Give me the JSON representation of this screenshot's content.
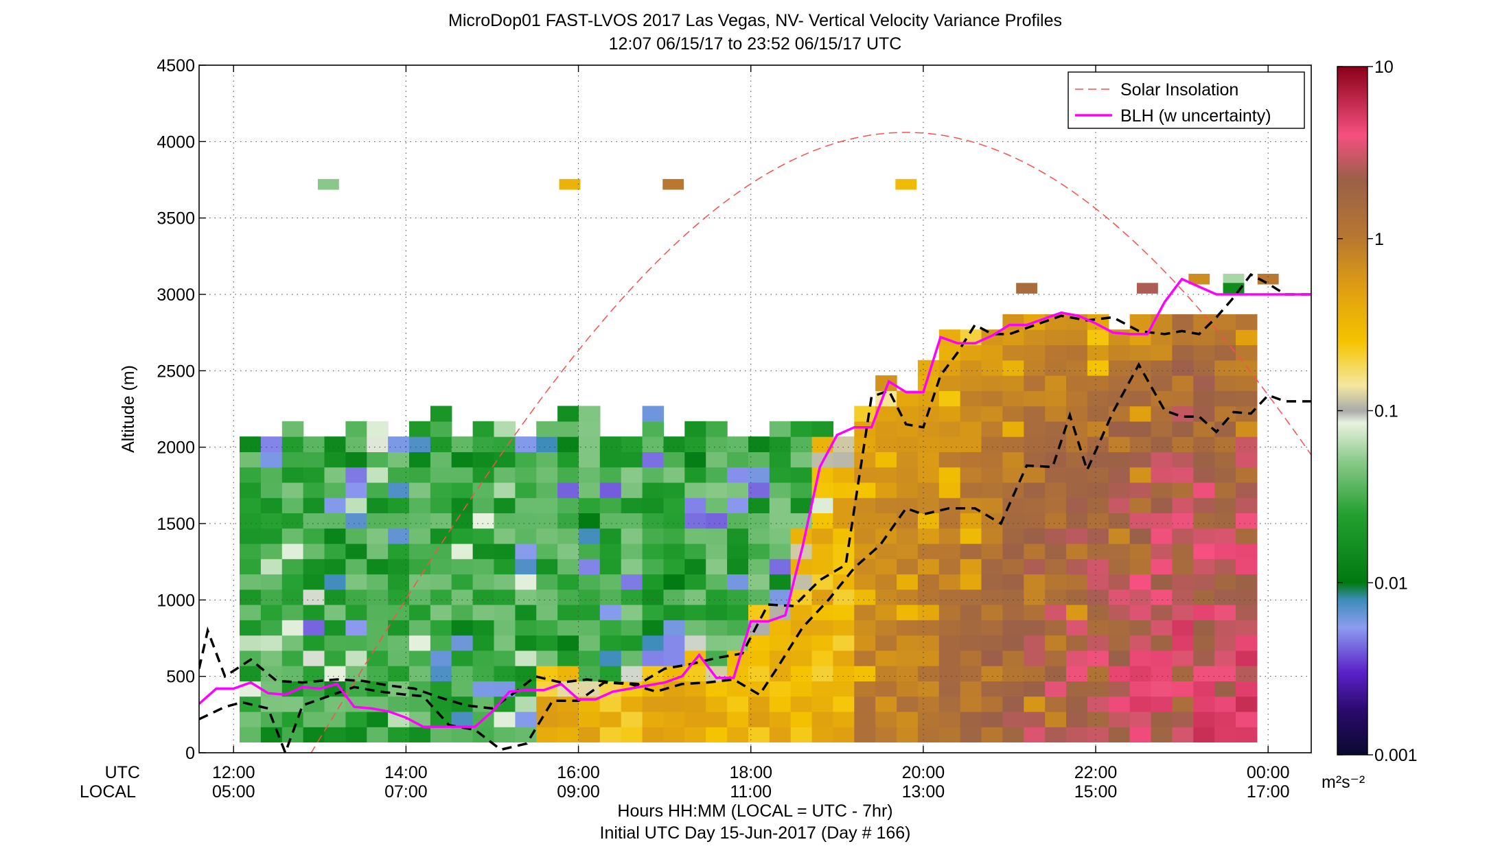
{
  "chart_data": {
    "type": "heatmap",
    "title": "MicroDop01 FAST-LVOS 2017 Las Vegas, NV- Vertical Velocity Variance Profiles",
    "subtitle": "12:07 06/15/17 to 23:52 06/15/17  UTC",
    "ylabel": "Altitude (m)",
    "xlabel": "Hours HH:MM  (LOCAL = UTC - 7hr)",
    "xlabel2": "Initial UTC Day 15-Jun-2017 (Day # 166)",
    "row_label_utc": "UTC",
    "row_label_local": "LOCAL",
    "colorbar_unit": "m²s⁻²",
    "xlim_hours_utc": [
      11.6,
      24.5
    ],
    "ylim": [
      0,
      4500
    ],
    "grid": true,
    "legend_position": "top-right",
    "legend": [
      {
        "label": "Solar Insolation",
        "color": "#ff4d4d",
        "style": "dashed"
      },
      {
        "label": "BLH (w uncertainty)",
        "color": "#ff00ff",
        "style": "solid"
      }
    ],
    "x_ticks": [
      {
        "utc_hour": 12,
        "utc": "12:00",
        "local": "05:00"
      },
      {
        "utc_hour": 14,
        "utc": "14:00",
        "local": "07:00"
      },
      {
        "utc_hour": 16,
        "utc": "16:00",
        "local": "09:00"
      },
      {
        "utc_hour": 18,
        "utc": "18:00",
        "local": "11:00"
      },
      {
        "utc_hour": 20,
        "utc": "20:00",
        "local": "13:00"
      },
      {
        "utc_hour": 22,
        "utc": "22:00",
        "local": "15:00"
      },
      {
        "utc_hour": 24,
        "utc": "00:00",
        "local": "17:00"
      }
    ],
    "y_ticks": [
      0,
      500,
      1000,
      1500,
      2000,
      2500,
      3000,
      3500,
      4000,
      4500
    ],
    "colorbar": {
      "scale": "log",
      "range": [
        0.001,
        10
      ],
      "ticks": [
        {
          "value": 0.001,
          "label": "0.001"
        },
        {
          "value": 0.01,
          "label": "0.01"
        },
        {
          "value": 0.1,
          "label": "0.1"
        },
        {
          "value": 1,
          "label": "1"
        },
        {
          "value": 10,
          "label": "10"
        }
      ],
      "stops": [
        {
          "value": 0.001,
          "color": "#0a0a30"
        },
        {
          "value": 0.0018,
          "color": "#2a0a6a"
        },
        {
          "value": 0.003,
          "color": "#5a20c8"
        },
        {
          "value": 0.0055,
          "color": "#8c9cf0"
        },
        {
          "value": 0.008,
          "color": "#3c8cb8"
        },
        {
          "value": 0.01,
          "color": "#007a10"
        },
        {
          "value": 0.025,
          "color": "#24a030"
        },
        {
          "value": 0.05,
          "color": "#88c888"
        },
        {
          "value": 0.085,
          "color": "#e8f2e0"
        },
        {
          "value": 0.1,
          "color": "#aaaaaa"
        },
        {
          "value": 0.14,
          "color": "#f4e8a0"
        },
        {
          "value": 0.25,
          "color": "#f5c400"
        },
        {
          "value": 0.5,
          "color": "#e0a010"
        },
        {
          "value": 1,
          "color": "#b87830"
        },
        {
          "value": 2.2,
          "color": "#9a6048"
        },
        {
          "value": 4,
          "color": "#f55080"
        },
        {
          "value": 10,
          "color": "#8a0018"
        }
      ]
    },
    "heatmap_grid": {
      "t_start": 12.07,
      "t_end": 23.87,
      "n_time": 48,
      "z_start": 120,
      "z_step": 100,
      "n_alt": 28
    },
    "blh": {
      "t": [
        11.6,
        11.8,
        12.0,
        12.2,
        12.4,
        12.6,
        12.8,
        13.0,
        13.2,
        13.4,
        13.6,
        13.8,
        14.0,
        14.2,
        14.4,
        14.6,
        14.8,
        15.0,
        15.2,
        15.4,
        15.6,
        15.8,
        16.0,
        16.2,
        16.4,
        16.6,
        16.8,
        17.0,
        17.2,
        17.4,
        17.6,
        17.8,
        18.0,
        18.2,
        18.4,
        18.6,
        18.8,
        19.0,
        19.2,
        19.4,
        19.6,
        19.8,
        20.0,
        20.2,
        20.4,
        20.6,
        20.8,
        21.0,
        21.2,
        21.4,
        21.6,
        21.8,
        22.0,
        22.2,
        22.4,
        22.6,
        22.8,
        23.0,
        23.2,
        23.4,
        23.6,
        23.8,
        24.0,
        24.2,
        24.4,
        24.5
      ],
      "z": [
        320,
        420,
        420,
        460,
        390,
        380,
        430,
        420,
        450,
        300,
        290,
        270,
        230,
        170,
        170,
        170,
        170,
        270,
        400,
        410,
        410,
        450,
        350,
        350,
        400,
        420,
        440,
        460,
        500,
        640,
        490,
        490,
        860,
        860,
        900,
        1350,
        1870,
        2080,
        2130,
        2130,
        2430,
        2360,
        2360,
        2720,
        2680,
        2680,
        2730,
        2800,
        2800,
        2840,
        2880,
        2860,
        2810,
        2750,
        2740,
        2740,
        2950,
        3100,
        3050,
        3000,
        3000,
        3000,
        3000,
        3000,
        3000,
        3000
      ]
    },
    "blh_upper": {
      "t": [
        11.6,
        11.7,
        11.9,
        12.2,
        12.5,
        12.8,
        13.2,
        13.5,
        13.8,
        14.1,
        14.4,
        14.7,
        15.0,
        15.3,
        15.5,
        15.8,
        16.1,
        16.4,
        16.7,
        17.0,
        17.3,
        17.6,
        17.9,
        18.2,
        18.5,
        18.8,
        19.1,
        19.4,
        19.6,
        19.8,
        20.0,
        20.2,
        20.4,
        20.6,
        20.8,
        21.0,
        21.3,
        21.6,
        21.9,
        22.2,
        22.5,
        22.8,
        23.0,
        23.2,
        23.4,
        23.6,
        23.8,
        24.0,
        24.2,
        24.4,
        24.5
      ],
      "z": [
        550,
        800,
        500,
        610,
        470,
        460,
        480,
        470,
        440,
        420,
        360,
        310,
        290,
        410,
        500,
        460,
        480,
        460,
        450,
        550,
        580,
        620,
        650,
        970,
        960,
        1130,
        1230,
        2330,
        2370,
        2150,
        2130,
        2470,
        2620,
        2800,
        2740,
        2740,
        2800,
        2860,
        2830,
        2850,
        2760,
        2740,
        2760,
        2740,
        2850,
        2980,
        3130,
        3070,
        3000,
        3000,
        3000
      ]
    },
    "blh_lower": {
      "t": [
        11.6,
        11.9,
        12.1,
        12.4,
        12.6,
        12.8,
        13.1,
        13.4,
        13.7,
        14.0,
        14.2,
        14.5,
        14.8,
        15.1,
        15.4,
        15.7,
        16.0,
        16.3,
        16.6,
        16.9,
        17.2,
        17.5,
        17.8,
        18.1,
        18.3,
        18.6,
        18.9,
        19.2,
        19.5,
        19.8,
        20.0,
        20.3,
        20.6,
        20.9,
        21.2,
        21.5,
        21.7,
        21.9,
        22.2,
        22.5,
        22.8,
        23.0,
        23.2,
        23.4,
        23.6,
        23.8,
        24.0,
        24.2,
        24.4,
        24.5
      ],
      "z": [
        220,
        300,
        330,
        290,
        0,
        310,
        370,
        430,
        400,
        380,
        370,
        180,
        150,
        20,
        60,
        340,
        340,
        460,
        450,
        400,
        450,
        460,
        480,
        380,
        550,
        820,
        1000,
        1210,
        1360,
        1600,
        1560,
        1600,
        1600,
        1500,
        1880,
        1870,
        2210,
        1850,
        2230,
        2540,
        2240,
        2200,
        2200,
        2100,
        2230,
        2220,
        2340,
        2300,
        2300,
        2300
      ]
    },
    "solar_insolation": {
      "t_noon_utc": 19.8,
      "z_peak": 4060,
      "half_width_hours": 6.9,
      "t_start": 12.5,
      "t_end": 24.5
    },
    "isolated_cells": [
      {
        "t": 13.1,
        "z": 3720,
        "value": 0.05
      },
      {
        "t": 15.9,
        "z": 3720,
        "value": 0.35
      },
      {
        "t": 17.1,
        "z": 3720,
        "value": 1.0
      },
      {
        "t": 19.8,
        "z": 3720,
        "value": 0.3
      },
      {
        "t": 21.2,
        "z": 3040,
        "value": 1.5
      },
      {
        "t": 22.6,
        "z": 3040,
        "value": 2.5
      },
      {
        "t": 23.2,
        "z": 3100,
        "value": 0.7
      },
      {
        "t": 23.6,
        "z": 3100,
        "value": 0.06
      },
      {
        "t": 23.6,
        "z": 3040,
        "value": 0.015
      },
      {
        "t": 24.0,
        "z": 3100,
        "value": 1.0
      }
    ]
  }
}
